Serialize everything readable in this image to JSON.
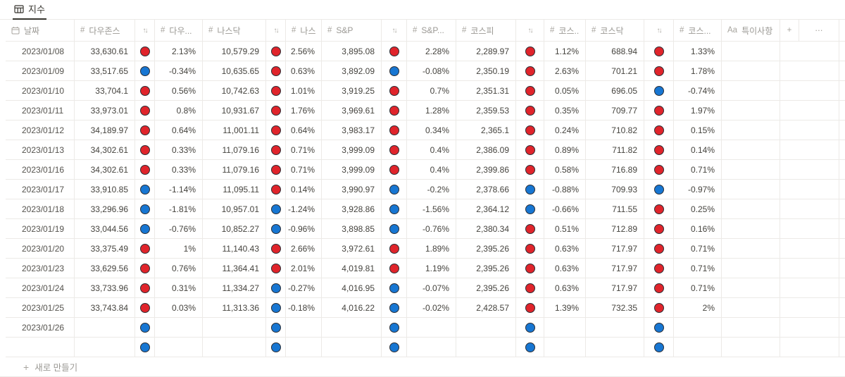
{
  "tab": {
    "label": "지수"
  },
  "table": {
    "new_row_label": "새로 만들기",
    "columns": [
      {
        "key": "date",
        "label": "날짜",
        "icon": "calendar-icon"
      },
      {
        "key": "dow",
        "label": "다우존스",
        "icon": "hash-icon"
      },
      {
        "key": "dow_dir",
        "label": "",
        "icon": "sort-icon"
      },
      {
        "key": "dow_pct",
        "label": "다우...",
        "icon": "hash-icon"
      },
      {
        "key": "nasdaq",
        "label": "나스닥",
        "icon": "hash-icon"
      },
      {
        "key": "nasdaq_dir",
        "label": "",
        "icon": "sort-icon"
      },
      {
        "key": "nasdaq_pct",
        "label": "나스...",
        "icon": "hash-icon"
      },
      {
        "key": "sp",
        "label": "S&P",
        "icon": "hash-icon"
      },
      {
        "key": "sp_dir",
        "label": "",
        "icon": "sort-icon"
      },
      {
        "key": "sp_pct",
        "label": "S&P...",
        "icon": "hash-icon"
      },
      {
        "key": "kospi",
        "label": "코스피",
        "icon": "hash-icon"
      },
      {
        "key": "kospi_dir",
        "label": "",
        "icon": "sort-icon"
      },
      {
        "key": "kospi_pct",
        "label": "코스...",
        "icon": "hash-icon"
      },
      {
        "key": "kosdaq",
        "label": "코스닥",
        "icon": "hash-icon"
      },
      {
        "key": "kosdaq_dir",
        "label": "",
        "icon": "sort-icon"
      },
      {
        "key": "kosdaq_pct",
        "label": "코스...",
        "icon": "hash-icon"
      },
      {
        "key": "note",
        "label": "특이사항",
        "icon": "text-icon"
      },
      {
        "key": "add",
        "label": "",
        "icon": "plus-icon"
      },
      {
        "key": "more",
        "label": "",
        "icon": "more-icon"
      }
    ],
    "rows": [
      {
        "date": "2023/01/08",
        "dow": "33,630.61",
        "dow_dir": "up",
        "dow_pct": "2.13%",
        "nasdaq": "10,579.29",
        "nasdaq_dir": "up",
        "nasdaq_pct": "2.56%",
        "sp": "3,895.08",
        "sp_dir": "up",
        "sp_pct": "2.28%",
        "kospi": "2,289.97",
        "kospi_dir": "up",
        "kospi_pct": "1.12%",
        "kosdaq": "688.94",
        "kosdaq_dir": "up",
        "kosdaq_pct": "1.33%",
        "note": ""
      },
      {
        "date": "2023/01/09",
        "dow": "33,517.65",
        "dow_dir": "down",
        "dow_pct": "-0.34%",
        "nasdaq": "10,635.65",
        "nasdaq_dir": "up",
        "nasdaq_pct": "0.63%",
        "sp": "3,892.09",
        "sp_dir": "down",
        "sp_pct": "-0.08%",
        "kospi": "2,350.19",
        "kospi_dir": "up",
        "kospi_pct": "2.63%",
        "kosdaq": "701.21",
        "kosdaq_dir": "up",
        "kosdaq_pct": "1.78%",
        "note": ""
      },
      {
        "date": "2023/01/10",
        "dow": "33,704.1",
        "dow_dir": "up",
        "dow_pct": "0.56%",
        "nasdaq": "10,742.63",
        "nasdaq_dir": "up",
        "nasdaq_pct": "1.01%",
        "sp": "3,919.25",
        "sp_dir": "up",
        "sp_pct": "0.7%",
        "kospi": "2,351.31",
        "kospi_dir": "up",
        "kospi_pct": "0.05%",
        "kosdaq": "696.05",
        "kosdaq_dir": "down",
        "kosdaq_pct": "-0.74%",
        "note": ""
      },
      {
        "date": "2023/01/11",
        "dow": "33,973.01",
        "dow_dir": "up",
        "dow_pct": "0.8%",
        "nasdaq": "10,931.67",
        "nasdaq_dir": "up",
        "nasdaq_pct": "1.76%",
        "sp": "3,969.61",
        "sp_dir": "up",
        "sp_pct": "1.28%",
        "kospi": "2,359.53",
        "kospi_dir": "up",
        "kospi_pct": "0.35%",
        "kosdaq": "709.77",
        "kosdaq_dir": "up",
        "kosdaq_pct": "1.97%",
        "note": ""
      },
      {
        "date": "2023/01/12",
        "dow": "34,189.97",
        "dow_dir": "up",
        "dow_pct": "0.64%",
        "nasdaq": "11,001.11",
        "nasdaq_dir": "up",
        "nasdaq_pct": "0.64%",
        "sp": "3,983.17",
        "sp_dir": "up",
        "sp_pct": "0.34%",
        "kospi": "2,365.1",
        "kospi_dir": "up",
        "kospi_pct": "0.24%",
        "kosdaq": "710.82",
        "kosdaq_dir": "up",
        "kosdaq_pct": "0.15%",
        "note": ""
      },
      {
        "date": "2023/01/13",
        "dow": "34,302.61",
        "dow_dir": "up",
        "dow_pct": "0.33%",
        "nasdaq": "11,079.16",
        "nasdaq_dir": "up",
        "nasdaq_pct": "0.71%",
        "sp": "3,999.09",
        "sp_dir": "up",
        "sp_pct": "0.4%",
        "kospi": "2,386.09",
        "kospi_dir": "up",
        "kospi_pct": "0.89%",
        "kosdaq": "711.82",
        "kosdaq_dir": "up",
        "kosdaq_pct": "0.14%",
        "note": ""
      },
      {
        "date": "2023/01/16",
        "dow": "34,302.61",
        "dow_dir": "up",
        "dow_pct": "0.33%",
        "nasdaq": "11,079.16",
        "nasdaq_dir": "up",
        "nasdaq_pct": "0.71%",
        "sp": "3,999.09",
        "sp_dir": "up",
        "sp_pct": "0.4%",
        "kospi": "2,399.86",
        "kospi_dir": "up",
        "kospi_pct": "0.58%",
        "kosdaq": "716.89",
        "kosdaq_dir": "up",
        "kosdaq_pct": "0.71%",
        "note": ""
      },
      {
        "date": "2023/01/17",
        "dow": "33,910.85",
        "dow_dir": "down",
        "dow_pct": "-1.14%",
        "nasdaq": "11,095.11",
        "nasdaq_dir": "up",
        "nasdaq_pct": "0.14%",
        "sp": "3,990.97",
        "sp_dir": "down",
        "sp_pct": "-0.2%",
        "kospi": "2,378.66",
        "kospi_dir": "down",
        "kospi_pct": "-0.88%",
        "kosdaq": "709.93",
        "kosdaq_dir": "down",
        "kosdaq_pct": "-0.97%",
        "note": ""
      },
      {
        "date": "2023/01/18",
        "dow": "33,296.96",
        "dow_dir": "down",
        "dow_pct": "-1.81%",
        "nasdaq": "10,957.01",
        "nasdaq_dir": "down",
        "nasdaq_pct": "-1.24%",
        "sp": "3,928.86",
        "sp_dir": "down",
        "sp_pct": "-1.56%",
        "kospi": "2,364.12",
        "kospi_dir": "down",
        "kospi_pct": "-0.66%",
        "kosdaq": "711.55",
        "kosdaq_dir": "up",
        "kosdaq_pct": "0.25%",
        "note": ""
      },
      {
        "date": "2023/01/19",
        "dow": "33,044.56",
        "dow_dir": "down",
        "dow_pct": "-0.76%",
        "nasdaq": "10,852.27",
        "nasdaq_dir": "down",
        "nasdaq_pct": "-0.96%",
        "sp": "3,898.85",
        "sp_dir": "down",
        "sp_pct": "-0.76%",
        "kospi": "2,380.34",
        "kospi_dir": "up",
        "kospi_pct": "0.51%",
        "kosdaq": "712.89",
        "kosdaq_dir": "up",
        "kosdaq_pct": "0.16%",
        "note": ""
      },
      {
        "date": "2023/01/20",
        "dow": "33,375.49",
        "dow_dir": "up",
        "dow_pct": "1%",
        "nasdaq": "11,140.43",
        "nasdaq_dir": "up",
        "nasdaq_pct": "2.66%",
        "sp": "3,972.61",
        "sp_dir": "up",
        "sp_pct": "1.89%",
        "kospi": "2,395.26",
        "kospi_dir": "up",
        "kospi_pct": "0.63%",
        "kosdaq": "717.97",
        "kosdaq_dir": "up",
        "kosdaq_pct": "0.71%",
        "note": ""
      },
      {
        "date": "2023/01/23",
        "dow": "33,629.56",
        "dow_dir": "up",
        "dow_pct": "0.76%",
        "nasdaq": "11,364.41",
        "nasdaq_dir": "up",
        "nasdaq_pct": "2.01%",
        "sp": "4,019.81",
        "sp_dir": "up",
        "sp_pct": "1.19%",
        "kospi": "2,395.26",
        "kospi_dir": "up",
        "kospi_pct": "0.63%",
        "kosdaq": "717.97",
        "kosdaq_dir": "up",
        "kosdaq_pct": "0.71%",
        "note": ""
      },
      {
        "date": "2023/01/24",
        "dow": "33,733.96",
        "dow_dir": "up",
        "dow_pct": "0.31%",
        "nasdaq": "11,334.27",
        "nasdaq_dir": "down",
        "nasdaq_pct": "-0.27%",
        "sp": "4,016.95",
        "sp_dir": "down",
        "sp_pct": "-0.07%",
        "kospi": "2,395.26",
        "kospi_dir": "up",
        "kospi_pct": "0.63%",
        "kosdaq": "717.97",
        "kosdaq_dir": "up",
        "kosdaq_pct": "0.71%",
        "note": ""
      },
      {
        "date": "2023/01/25",
        "dow": "33,743.84",
        "dow_dir": "up",
        "dow_pct": "0.03%",
        "nasdaq": "11,313.36",
        "nasdaq_dir": "down",
        "nasdaq_pct": "-0.18%",
        "sp": "4,016.22",
        "sp_dir": "down",
        "sp_pct": "-0.02%",
        "kospi": "2,428.57",
        "kospi_dir": "up",
        "kospi_pct": "1.39%",
        "kosdaq": "732.35",
        "kosdaq_dir": "up",
        "kosdaq_pct": "2%",
        "note": ""
      },
      {
        "date": "2023/01/26",
        "dow": "",
        "dow_dir": "down",
        "dow_pct": "",
        "nasdaq": "",
        "nasdaq_dir": "down",
        "nasdaq_pct": "",
        "sp": "",
        "sp_dir": "down",
        "sp_pct": "",
        "kospi": "",
        "kospi_dir": "down",
        "kospi_pct": "",
        "kosdaq": "",
        "kosdaq_dir": "down",
        "kosdaq_pct": "",
        "note": ""
      },
      {
        "date": "",
        "dow": "",
        "dow_dir": "down",
        "dow_pct": "",
        "nasdaq": "",
        "nasdaq_dir": "down",
        "nasdaq_pct": "",
        "sp": "",
        "sp_dir": "down",
        "sp_pct": "",
        "kospi": "",
        "kospi_dir": "down",
        "kospi_pct": "",
        "kosdaq": "",
        "kosdaq_dir": "down",
        "kosdaq_pct": "",
        "note": ""
      }
    ]
  },
  "colors": {
    "up_circle": "#e0242b",
    "down_circle": "#1776d2",
    "border": "#eceae7",
    "header_text": "#9b9994"
  }
}
